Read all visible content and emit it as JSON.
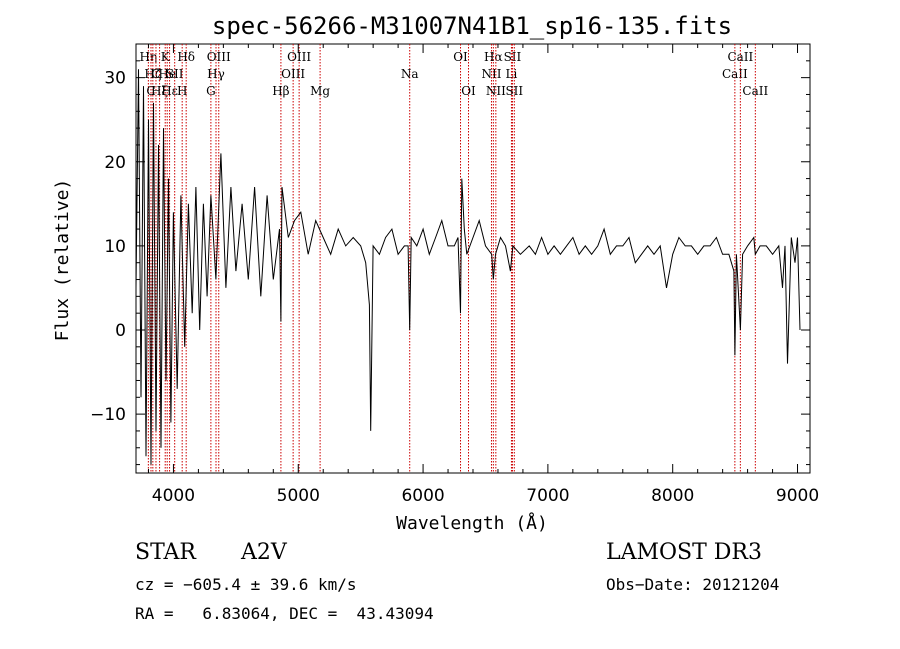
{
  "chart_data": {
    "type": "line",
    "title": "spec-56266-M31007N41B1_sp16-135.fits",
    "xlabel": "Wavelength (Å)",
    "ylabel": "Flux (relative)",
    "xlim": [
      3700,
      9100
    ],
    "ylim": [
      -17,
      34
    ],
    "xticks": [
      4000,
      5000,
      6000,
      7000,
      8000,
      9000
    ],
    "xtick_labels": [
      "4000",
      "5000",
      "6000",
      "7000",
      "8000",
      "9000"
    ],
    "yticks": [
      -10,
      0,
      10,
      20,
      30
    ],
    "ytick_labels": [
      "−10",
      "0",
      "10",
      "20",
      "30"
    ],
    "grid": false,
    "line_color": "#000000",
    "marker_color": "#cc0000",
    "series": [
      {
        "name": "flux",
        "x": [
          3700,
          3720,
          3740,
          3760,
          3780,
          3800,
          3820,
          3840,
          3860,
          3880,
          3900,
          3920,
          3940,
          3960,
          3980,
          4000,
          4030,
          4060,
          4090,
          4120,
          4150,
          4180,
          4210,
          4240,
          4270,
          4300,
          4340,
          4380,
          4420,
          4460,
          4500,
          4550,
          4600,
          4650,
          4700,
          4750,
          4800,
          4850,
          4861,
          4870,
          4920,
          4970,
          5020,
          5080,
          5140,
          5200,
          5260,
          5320,
          5380,
          5440,
          5500,
          5540,
          5570,
          5580,
          5600,
          5650,
          5700,
          5750,
          5800,
          5850,
          5880,
          5893,
          5905,
          5950,
          6000,
          6050,
          6100,
          6150,
          6200,
          6250,
          6280,
          6300,
          6310,
          6330,
          6350,
          6400,
          6450,
          6500,
          6550,
          6563,
          6580,
          6620,
          6660,
          6700,
          6720,
          6780,
          6850,
          6900,
          6950,
          7000,
          7050,
          7100,
          7150,
          7200,
          7250,
          7300,
          7350,
          7400,
          7450,
          7500,
          7550,
          7600,
          7650,
          7700,
          7750,
          7800,
          7850,
          7900,
          7950,
          8000,
          8050,
          8100,
          8150,
          8200,
          8250,
          8300,
          8350,
          8400,
          8450,
          8490,
          8498,
          8510,
          8542,
          8560,
          8600,
          8650,
          8662,
          8700,
          8750,
          8800,
          8850,
          8880,
          8900,
          8920,
          8950,
          8980,
          9000,
          9020
        ],
        "y": [
          5,
          31,
          -8,
          29,
          -15,
          25,
          -16,
          27,
          -12,
          22,
          -14,
          24,
          -6,
          18,
          -11,
          14,
          -7,
          16,
          -2,
          15,
          2,
          17,
          0,
          15,
          4,
          16,
          6,
          21,
          5,
          17,
          7,
          15,
          6,
          17,
          4,
          16,
          6,
          12,
          1,
          17,
          11,
          13,
          14,
          9,
          13,
          11,
          9,
          12,
          10,
          11,
          10,
          8,
          3,
          -12,
          10,
          9,
          11,
          12,
          9,
          10,
          10,
          0,
          11,
          10,
          12,
          9,
          11,
          13,
          10,
          10,
          11,
          2,
          18,
          12,
          9,
          11,
          13,
          10,
          9,
          6,
          9,
          11,
          10,
          7,
          10,
          9,
          10,
          9,
          11,
          9,
          10,
          9,
          10,
          11,
          9,
          10,
          9,
          10,
          12,
          9,
          10,
          10,
          11,
          8,
          9,
          10,
          9,
          10,
          5,
          9,
          11,
          10,
          10,
          9,
          10,
          10,
          11,
          9,
          9,
          7,
          -3,
          9,
          0,
          9,
          10,
          11,
          9,
          10,
          10,
          9,
          10,
          5,
          10,
          -4,
          11,
          8,
          11,
          0
        ]
      }
    ],
    "line_markers": [
      {
        "wl": 3799,
        "label": "Hη",
        "row": 0
      },
      {
        "wl": 3820,
        "label": "C",
        "row": 2
      },
      {
        "wl": 3835,
        "label": "Hζ",
        "row": 1
      },
      {
        "wl": 3860,
        "label": "C",
        "row": 1
      },
      {
        "wl": 3889,
        "label": "Hξ",
        "row": 2
      },
      {
        "wl": 3934,
        "label": "K",
        "row": 0
      },
      {
        "wl": 3950,
        "label": "He",
        "row": 1
      },
      {
        "wl": 3969,
        "label": "Hε",
        "row": 2
      },
      {
        "wl": 4010,
        "label": "SII",
        "row": 1
      },
      {
        "wl": 4070,
        "label": "H",
        "row": 2
      },
      {
        "wl": 4102,
        "label": "Hδ",
        "row": 0
      },
      {
        "wl": 4300,
        "label": "G",
        "row": 2
      },
      {
        "wl": 4341,
        "label": "Hγ",
        "row": 1
      },
      {
        "wl": 4363,
        "label": "OIII",
        "row": 0
      },
      {
        "wl": 4861,
        "label": "Hβ",
        "row": 2
      },
      {
        "wl": 4959,
        "label": "OIII",
        "row": 1
      },
      {
        "wl": 5007,
        "label": "OIII",
        "row": 0
      },
      {
        "wl": 5175,
        "label": "Mg",
        "row": 2
      },
      {
        "wl": 5893,
        "label": "Na",
        "row": 1
      },
      {
        "wl": 6300,
        "label": "OI",
        "row": 0
      },
      {
        "wl": 6364,
        "label": "OI",
        "row": 2
      },
      {
        "wl": 6548,
        "label": "NII",
        "row": 1
      },
      {
        "wl": 6563,
        "label": "Hα",
        "row": 0
      },
      {
        "wl": 6583,
        "label": "NII",
        "row": 2
      },
      {
        "wl": 6708,
        "label": "Li",
        "row": 1
      },
      {
        "wl": 6716,
        "label": "SII",
        "row": 0
      },
      {
        "wl": 6731,
        "label": "SII",
        "row": 2
      },
      {
        "wl": 8498,
        "label": "CaII",
        "row": 1
      },
      {
        "wl": 8542,
        "label": "CaII",
        "row": 0
      },
      {
        "wl": 8662,
        "label": "CaII",
        "row": 2
      }
    ]
  },
  "info": {
    "object_class": "STAR",
    "subclass": "A2V",
    "survey": "LAMOST DR3",
    "cz": "cz = −605.4 ± 39.6 km/s",
    "obs_date": "Obs−Date: 20121204",
    "coords": "RA =   6.83064, DEC =  43.43094"
  }
}
